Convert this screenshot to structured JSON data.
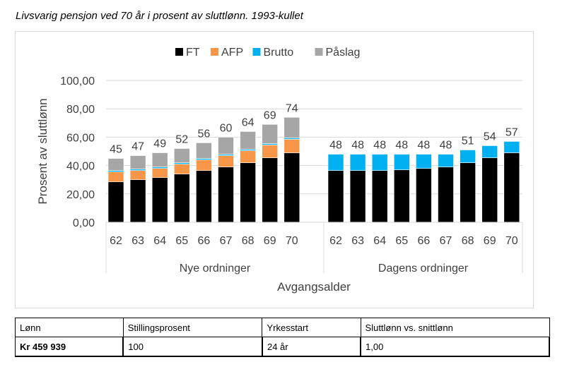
{
  "title": "Livsvarig pensjon ved 70 år i prosent av sluttlønn. 1993-kullet",
  "chart_data": {
    "type": "bar",
    "stacked": true,
    "ylabel": "Prosent av sluttlønn",
    "xlabel": "Avgangsalder",
    "ylim": [
      0,
      100
    ],
    "yticks": [
      "0,00",
      "20,00",
      "40,00",
      "60,00",
      "80,00",
      "100,00"
    ],
    "ytick_values": [
      0,
      20,
      40,
      60,
      80,
      100
    ],
    "grid": true,
    "legend_position": "top",
    "legend": [
      {
        "name": "FT",
        "color": "#000000"
      },
      {
        "name": "AFP",
        "color": "#f79646"
      },
      {
        "name": "Brutto",
        "color": "#00b0f0"
      },
      {
        "name": "Påslag",
        "color": "#a6a6a6"
      }
    ],
    "groups": [
      {
        "label": "Nye ordninger",
        "categories": [
          "62",
          "63",
          "64",
          "65",
          "66",
          "67",
          "68",
          "69",
          "70"
        ],
        "series": [
          {
            "name": "FT",
            "values": [
              28.5,
              30,
              31.5,
              34,
              36.5,
              39,
              42,
              45.5,
              49
            ]
          },
          {
            "name": "AFP",
            "values": [
              7,
              6.5,
              6.5,
              7,
              7.5,
              8,
              8.5,
              9,
              9.5
            ]
          },
          {
            "name": "Brutto",
            "values": [
              1,
              1,
              1,
              1,
              1,
              1,
              1,
              1,
              1
            ]
          },
          {
            "name": "Påslag",
            "values": [
              8.5,
              9.5,
              10,
              10,
              11,
              12,
              12.5,
              13.5,
              14.5
            ]
          }
        ],
        "totals": [
          "45",
          "47",
          "49",
          "52",
          "56",
          "60",
          "64",
          "69",
          "74"
        ]
      },
      {
        "label": "Dagens ordninger",
        "categories": [
          "62",
          "63",
          "64",
          "65",
          "66",
          "67",
          "68",
          "69",
          "70"
        ],
        "series": [
          {
            "name": "FT",
            "values": [
              36.5,
              36.5,
              36.5,
              37,
              38,
              39,
              42,
              45.5,
              49
            ]
          },
          {
            "name": "AFP",
            "values": [
              0,
              0,
              0,
              0,
              0,
              0,
              0,
              0,
              0
            ]
          },
          {
            "name": "Brutto",
            "values": [
              11.5,
              11.5,
              11.5,
              11,
              10,
              9,
              9,
              8.5,
              8
            ]
          },
          {
            "name": "Påslag",
            "values": [
              0,
              0,
              0,
              0,
              0,
              0,
              0,
              0,
              0
            ]
          }
        ],
        "totals": [
          "48",
          "48",
          "48",
          "48",
          "48",
          "48",
          "51",
          "54",
          "57"
        ]
      }
    ]
  },
  "info_table": {
    "headers": [
      "Lønn",
      "Stillingsprosent",
      "Yrkesstart",
      "Sluttlønn vs. snittlønn"
    ],
    "values": [
      "Kr 459 939",
      "100",
      "24 år",
      "1,00"
    ]
  }
}
